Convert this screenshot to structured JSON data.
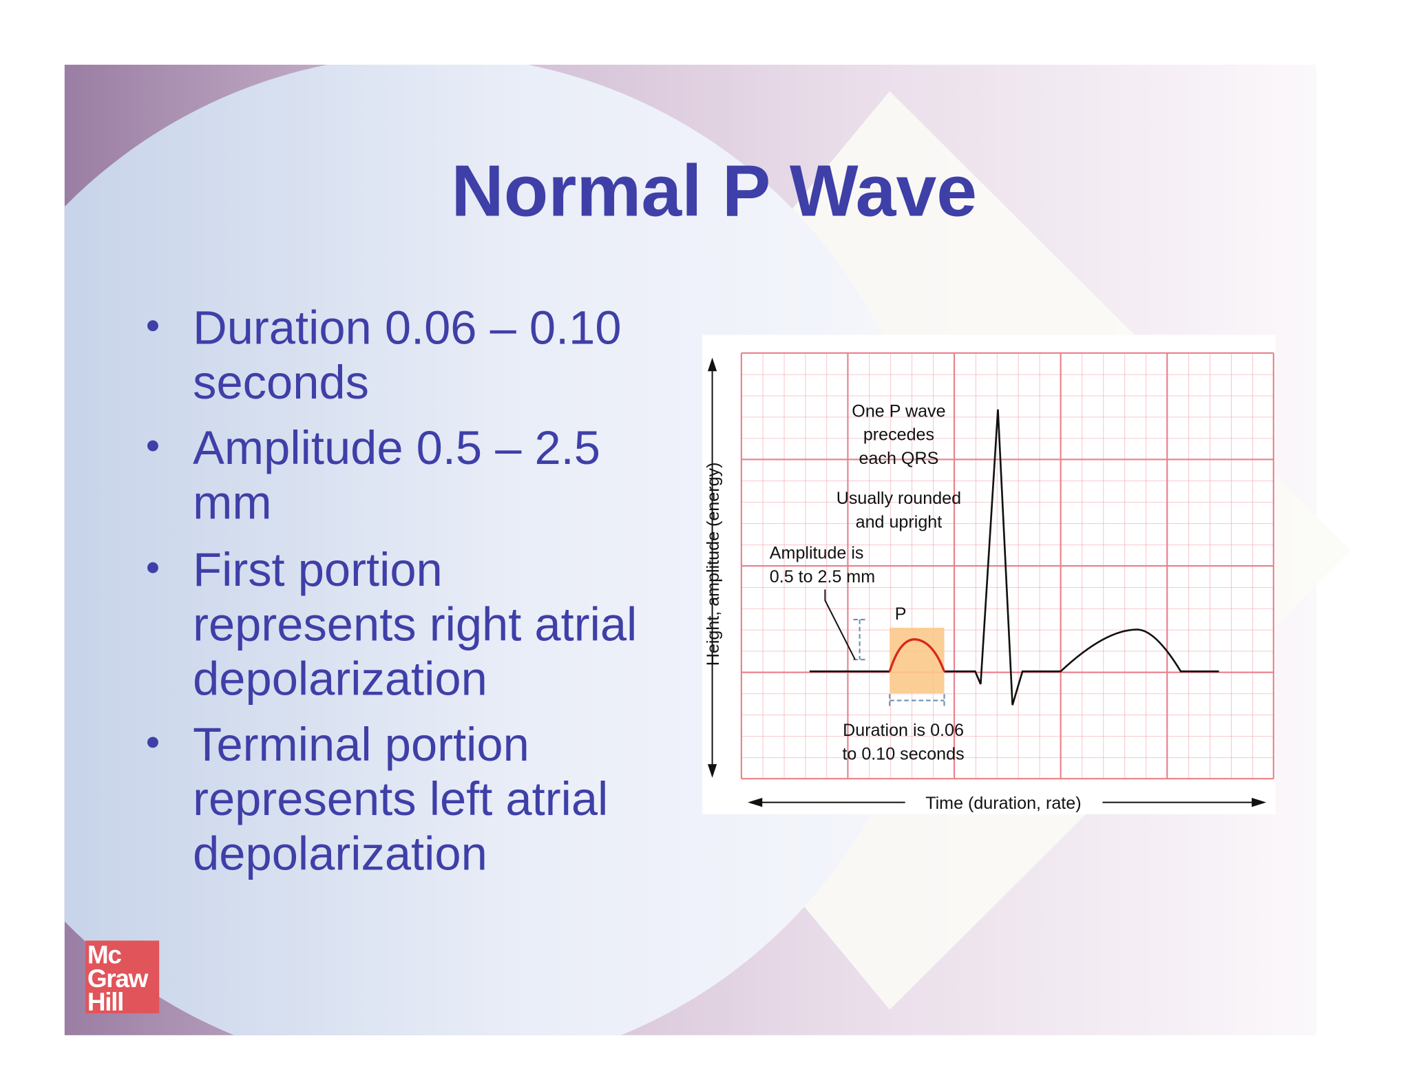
{
  "slide": {
    "title": "Normal P Wave",
    "bullets": [
      [
        "Duration 0.06 – 0.10",
        "seconds"
      ],
      [
        "Amplitude 0.5 – 2.5",
        "mm"
      ],
      [
        "First portion",
        "represents right atrial",
        "depolarization"
      ],
      [
        "Terminal portion",
        "represents left atrial",
        "depolarization"
      ]
    ],
    "diagram": {
      "note_qrs": [
        "One P wave",
        "precedes",
        "each QRS"
      ],
      "note_shape": [
        "Usually rounded",
        "and upright"
      ],
      "note_amplitude": [
        "Amplitude is",
        "0.5 to 2.5 mm"
      ],
      "p_label": "P",
      "note_duration": [
        "Duration is 0.06",
        "to 0.10 seconds"
      ],
      "y_axis_label": "Height, amplitude (energy)",
      "x_axis_label": "Time (duration, rate)"
    },
    "logo": [
      "Mc",
      "Graw",
      "Hill"
    ]
  }
}
